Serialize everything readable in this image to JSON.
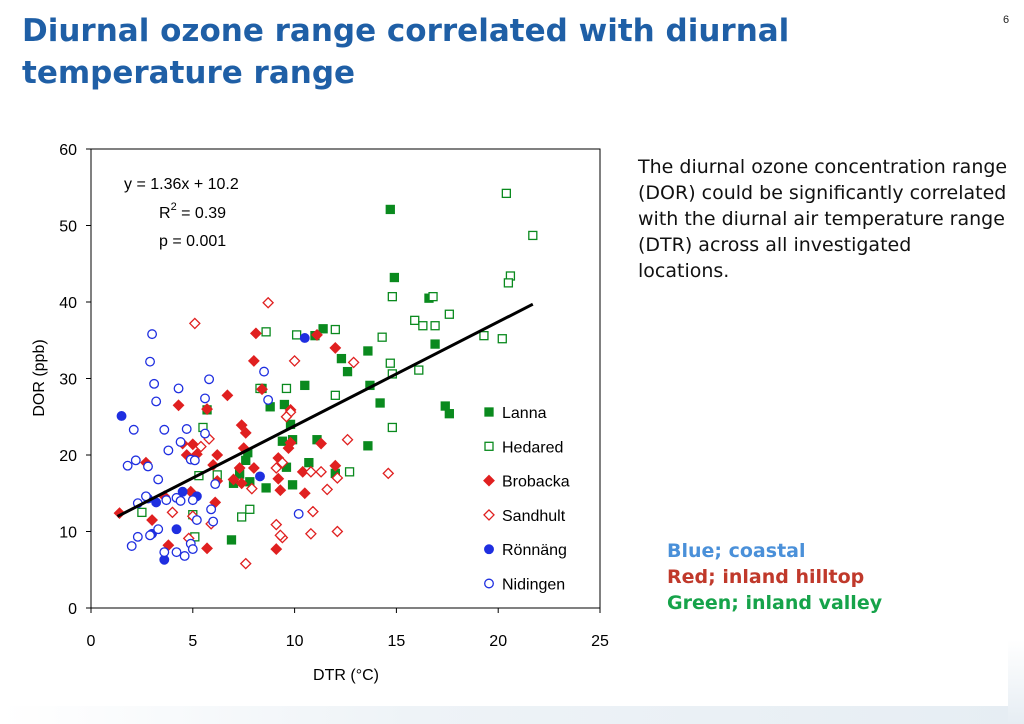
{
  "slide": {
    "title_line1": "Diurnal ozone range correlated with diurnal",
    "title_line2": "temperature range",
    "page_number": "6",
    "description": "The diurnal ozone concentration range (DOR) could be significantly correlated with the diurnal air temperature range (DTR) across all investigated locations.",
    "key": [
      {
        "text": "Blue; coastal",
        "color": "#4a90d9"
      },
      {
        "text": "Red; inland hilltop",
        "color": "#c0392b"
      },
      {
        "text": "Green; inland valley",
        "color": "#16a34a"
      }
    ]
  },
  "chart_data": {
    "type": "scatter",
    "xlabel": "DTR (°C)",
    "ylabel": "DOR (ppb)",
    "xlim": [
      0,
      25
    ],
    "ylim": [
      0,
      60
    ],
    "xticks": [
      "0",
      "5",
      "10",
      "15",
      "20",
      "25"
    ],
    "yticks": [
      "0",
      "10",
      "20",
      "30",
      "40",
      "50",
      "60"
    ],
    "legend_position": "inside lower-right",
    "annotation": {
      "equation": "y = 1.36x + 10.2",
      "r2_label": "R",
      "r2_superscript": "2",
      "r2_value": " = 0.39",
      "p_value": "p = 0.001"
    },
    "trendline": {
      "slope": 1.36,
      "intercept": 10.2,
      "x_range": [
        1.3,
        21.7
      ]
    },
    "series": [
      {
        "name": "Lanna",
        "color": "#0a8a1e",
        "marker": "square",
        "filled": true,
        "points": [
          [
            14.7,
            52.1
          ],
          [
            14.9,
            43.2
          ],
          [
            16.6,
            40.5
          ],
          [
            11.4,
            36.5
          ],
          [
            11.0,
            35.6
          ],
          [
            13.6,
            33.6
          ],
          [
            16.9,
            34.5
          ],
          [
            12.3,
            32.6
          ],
          [
            12.6,
            30.9
          ],
          [
            13.7,
            29.1
          ],
          [
            10.5,
            29.1
          ],
          [
            14.2,
            26.8
          ],
          [
            17.4,
            26.4
          ],
          [
            17.6,
            25.4
          ],
          [
            8.4,
            28.7
          ],
          [
            8.8,
            26.3
          ],
          [
            9.5,
            26.6
          ],
          [
            5.7,
            25.9
          ],
          [
            9.8,
            24.0
          ],
          [
            9.9,
            22.0
          ],
          [
            9.4,
            21.8
          ],
          [
            11.1,
            22.0
          ],
          [
            13.6,
            21.2
          ],
          [
            7.7,
            20.3
          ],
          [
            7.6,
            19.3
          ],
          [
            9.6,
            18.4
          ],
          [
            10.7,
            19.0
          ],
          [
            7.3,
            17.5
          ],
          [
            7.8,
            16.5
          ],
          [
            9.9,
            16.1
          ],
          [
            12.0,
            17.6
          ],
          [
            8.6,
            15.7
          ],
          [
            7.0,
            16.3
          ],
          [
            6.9,
            8.9
          ]
        ]
      },
      {
        "name": "Hedared",
        "color": "#0a8a1e",
        "marker": "square",
        "filled": false,
        "points": [
          [
            20.4,
            54.2
          ],
          [
            21.7,
            48.7
          ],
          [
            20.6,
            43.4
          ],
          [
            20.5,
            42.5
          ],
          [
            16.8,
            40.7
          ],
          [
            14.8,
            40.7
          ],
          [
            17.6,
            38.4
          ],
          [
            15.9,
            37.6
          ],
          [
            16.3,
            36.9
          ],
          [
            16.9,
            36.9
          ],
          [
            12.0,
            36.4
          ],
          [
            10.1,
            35.7
          ],
          [
            8.6,
            36.1
          ],
          [
            14.3,
            35.4
          ],
          [
            19.3,
            35.6
          ],
          [
            20.2,
            35.2
          ],
          [
            14.7,
            32.0
          ],
          [
            14.8,
            30.6
          ],
          [
            16.1,
            31.1
          ],
          [
            12.0,
            27.8
          ],
          [
            9.6,
            28.7
          ],
          [
            14.8,
            23.6
          ],
          [
            8.3,
            28.7
          ],
          [
            5.5,
            23.6
          ],
          [
            12.7,
            17.8
          ],
          [
            6.2,
            17.4
          ],
          [
            5.3,
            17.3
          ],
          [
            7.4,
            11.9
          ],
          [
            7.8,
            12.9
          ],
          [
            5.0,
            12.2
          ],
          [
            2.5,
            12.5
          ],
          [
            5.1,
            9.3
          ]
        ]
      },
      {
        "name": "Brobacka",
        "color": "#e02020",
        "marker": "diamond",
        "filled": true,
        "points": [
          [
            11.1,
            35.7
          ],
          [
            8.1,
            35.9
          ],
          [
            12.0,
            34.0
          ],
          [
            8.0,
            32.3
          ],
          [
            8.4,
            28.6
          ],
          [
            6.7,
            27.8
          ],
          [
            4.3,
            26.5
          ],
          [
            5.7,
            26.0
          ],
          [
            9.8,
            25.9
          ],
          [
            7.4,
            23.9
          ],
          [
            7.6,
            22.9
          ],
          [
            9.8,
            21.6
          ],
          [
            11.3,
            21.5
          ],
          [
            5.0,
            21.4
          ],
          [
            4.5,
            21.5
          ],
          [
            6.2,
            20.0
          ],
          [
            7.5,
            20.9
          ],
          [
            9.7,
            20.9
          ],
          [
            4.7,
            20.0
          ],
          [
            5.2,
            20.1
          ],
          [
            2.7,
            19.0
          ],
          [
            6.0,
            18.7
          ],
          [
            7.3,
            18.3
          ],
          [
            8.0,
            18.3
          ],
          [
            9.2,
            19.6
          ],
          [
            12.0,
            18.6
          ],
          [
            10.4,
            17.8
          ],
          [
            9.2,
            16.9
          ],
          [
            7.0,
            16.8
          ],
          [
            6.2,
            16.6
          ],
          [
            7.4,
            16.3
          ],
          [
            4.9,
            15.2
          ],
          [
            3.6,
            14.6
          ],
          [
            6.1,
            13.8
          ],
          [
            10.5,
            15.0
          ],
          [
            9.3,
            15.4
          ],
          [
            1.4,
            12.4
          ],
          [
            3.0,
            11.5
          ],
          [
            3.8,
            8.2
          ],
          [
            5.7,
            7.8
          ],
          [
            9.1,
            7.7
          ]
        ]
      },
      {
        "name": "Sandhult",
        "color": "#e02020",
        "marker": "diamond",
        "filled": false,
        "points": [
          [
            8.7,
            39.9
          ],
          [
            5.1,
            37.2
          ],
          [
            12.9,
            32.1
          ],
          [
            10.0,
            32.3
          ],
          [
            9.8,
            25.6
          ],
          [
            5.4,
            21.1
          ],
          [
            5.8,
            22.1
          ],
          [
            12.6,
            22.0
          ],
          [
            9.6,
            25.0
          ],
          [
            10.8,
            17.8
          ],
          [
            11.3,
            17.8
          ],
          [
            14.6,
            17.6
          ],
          [
            12.1,
            17.0
          ],
          [
            9.1,
            18.3
          ],
          [
            9.4,
            19.0
          ],
          [
            7.9,
            15.6
          ],
          [
            11.6,
            15.5
          ],
          [
            9.4,
            9.2
          ],
          [
            9.3,
            9.5
          ],
          [
            9.1,
            10.9
          ],
          [
            12.1,
            10.0
          ],
          [
            10.8,
            9.7
          ],
          [
            10.9,
            12.6
          ],
          [
            5.9,
            11.0
          ],
          [
            5.0,
            12.0
          ],
          [
            4.0,
            12.5
          ],
          [
            4.8,
            9.1
          ],
          [
            7.6,
            5.8
          ]
        ]
      },
      {
        "name": "Rönnäng",
        "color": "#1f2fe0",
        "marker": "circle",
        "filled": true,
        "points": [
          [
            1.5,
            25.1
          ],
          [
            10.5,
            35.3
          ],
          [
            8.3,
            17.2
          ],
          [
            4.5,
            15.2
          ],
          [
            5.2,
            14.6
          ],
          [
            4.2,
            10.3
          ],
          [
            3.0,
            9.7
          ],
          [
            3.6,
            6.3
          ],
          [
            3.2,
            13.8
          ],
          [
            2.8,
            14.3
          ]
        ]
      },
      {
        "name": "Nidingen",
        "color": "#1f2fe0",
        "marker": "circle",
        "filled": false,
        "points": [
          [
            3.0,
            35.8
          ],
          [
            2.9,
            32.2
          ],
          [
            3.1,
            29.3
          ],
          [
            5.8,
            29.9
          ],
          [
            4.3,
            28.7
          ],
          [
            8.5,
            30.9
          ],
          [
            8.7,
            27.2
          ],
          [
            3.2,
            27.0
          ],
          [
            5.6,
            27.4
          ],
          [
            2.1,
            23.3
          ],
          [
            4.7,
            23.4
          ],
          [
            5.6,
            22.8
          ],
          [
            4.4,
            21.7
          ],
          [
            3.8,
            20.6
          ],
          [
            3.6,
            23.3
          ],
          [
            1.8,
            18.6
          ],
          [
            2.2,
            19.3
          ],
          [
            2.8,
            18.5
          ],
          [
            4.9,
            19.4
          ],
          [
            5.1,
            19.3
          ],
          [
            6.1,
            16.2
          ],
          [
            3.3,
            16.8
          ],
          [
            2.7,
            14.6
          ],
          [
            4.2,
            14.4
          ],
          [
            4.4,
            14.0
          ],
          [
            3.7,
            14.1
          ],
          [
            2.3,
            13.7
          ],
          [
            5.0,
            14.1
          ],
          [
            5.9,
            12.9
          ],
          [
            2.3,
            9.3
          ],
          [
            3.3,
            10.3
          ],
          [
            2.9,
            9.5
          ],
          [
            4.9,
            8.4
          ],
          [
            4.2,
            7.3
          ],
          [
            2.0,
            8.1
          ],
          [
            6.0,
            11.3
          ],
          [
            5.2,
            11.5
          ],
          [
            10.2,
            12.3
          ],
          [
            5.0,
            7.7
          ],
          [
            3.6,
            7.3
          ],
          [
            4.6,
            6.8
          ]
        ]
      }
    ]
  }
}
